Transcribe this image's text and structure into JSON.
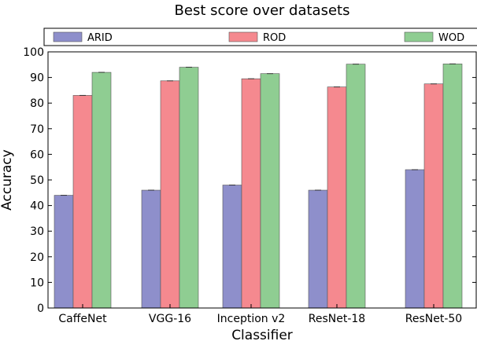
{
  "chart_data": {
    "type": "bar",
    "title": "Best score over datasets",
    "xlabel": "Classifier",
    "ylabel": "Accuracy",
    "ylim": [
      0,
      100
    ],
    "yticks": [
      0,
      10,
      20,
      30,
      40,
      50,
      60,
      70,
      80,
      90,
      100
    ],
    "categories": [
      "CaffeNet",
      "VGG-16",
      "Inception v2",
      "ResNet-18",
      "ResNet-50"
    ],
    "series": [
      {
        "name": "ARID",
        "color": "#8e8fcb",
        "values": [
          44,
          46,
          48,
          46,
          54
        ]
      },
      {
        "name": "ROD",
        "color": "#f5898f",
        "values": [
          83,
          88.7,
          89.5,
          86.3,
          87.5
        ]
      },
      {
        "name": "WOD",
        "color": "#8fcd92",
        "values": [
          92,
          94,
          91.5,
          95.2,
          95.3
        ]
      }
    ],
    "legend": "top",
    "grid": false
  }
}
